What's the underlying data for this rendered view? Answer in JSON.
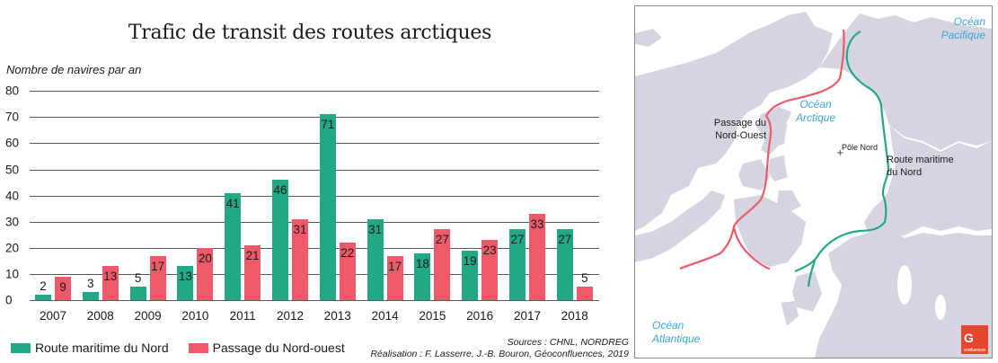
{
  "chart_data": {
    "type": "bar",
    "title": "Trafic de transit des routes arctiques",
    "xlabel": "",
    "ylabel": "Nombre de navires par an",
    "ylim": [
      0,
      80
    ],
    "yticks": [
      0,
      10,
      20,
      30,
      40,
      50,
      60,
      70,
      80
    ],
    "grid": true,
    "legend_position": "bottom-left",
    "categories": [
      "2007",
      "2008",
      "2009",
      "2010",
      "2011",
      "2012",
      "2013",
      "2014",
      "2015",
      "2016",
      "2017",
      "2018"
    ],
    "series": [
      {
        "name": "Route maritime du Nord",
        "color": "#22a884",
        "values": [
          2,
          3,
          5,
          13,
          41,
          46,
          71,
          31,
          18,
          19,
          27,
          27
        ]
      },
      {
        "name": "Passage du Nord-ouest",
        "color": "#ef5a6a",
        "values": [
          9,
          13,
          17,
          20,
          21,
          31,
          22,
          17,
          27,
          23,
          33,
          5
        ]
      }
    ]
  },
  "title": "Trafic de transit des routes arctiques",
  "y_axis_label": "Nombre de navires par an",
  "yticks": [
    "0",
    "10",
    "20",
    "30",
    "40",
    "50",
    "60",
    "70",
    "80"
  ],
  "legend": [
    {
      "label": "Route maritime du Nord",
      "color": "#22a884"
    },
    {
      "label": "Passage du Nord-ouest",
      "color": "#ef5a6a"
    }
  ],
  "credits": {
    "sources": "Sources : CHNL, NORDREG",
    "realisation": "Réalisation : F. Lasserre, J.-B. Bouron, Géoconfluences, 2019"
  },
  "map": {
    "labels": {
      "ocean_pacifique_1": "Océan",
      "ocean_pacifique_2": "Pacifique",
      "ocean_arctique_1": "Océan",
      "ocean_arctique_2": "Arctique",
      "ocean_atlantique_1": "Océan",
      "ocean_atlantique_2": "Atlantique",
      "passage_1": "Passage du",
      "passage_2": "Nord-Ouest",
      "route_1": "Route maritime",
      "route_2": "du Nord",
      "pole": "Pôle Nord",
      "pole_marker": "+"
    },
    "colors": {
      "land": "#d5d5e1",
      "nsr": "#22a884",
      "nwp": "#ef5a6a",
      "ocean_text": "#3aa6d8",
      "logo": "#e8472e"
    },
    "logo": {
      "mark": "G",
      "text": "confluences"
    }
  }
}
